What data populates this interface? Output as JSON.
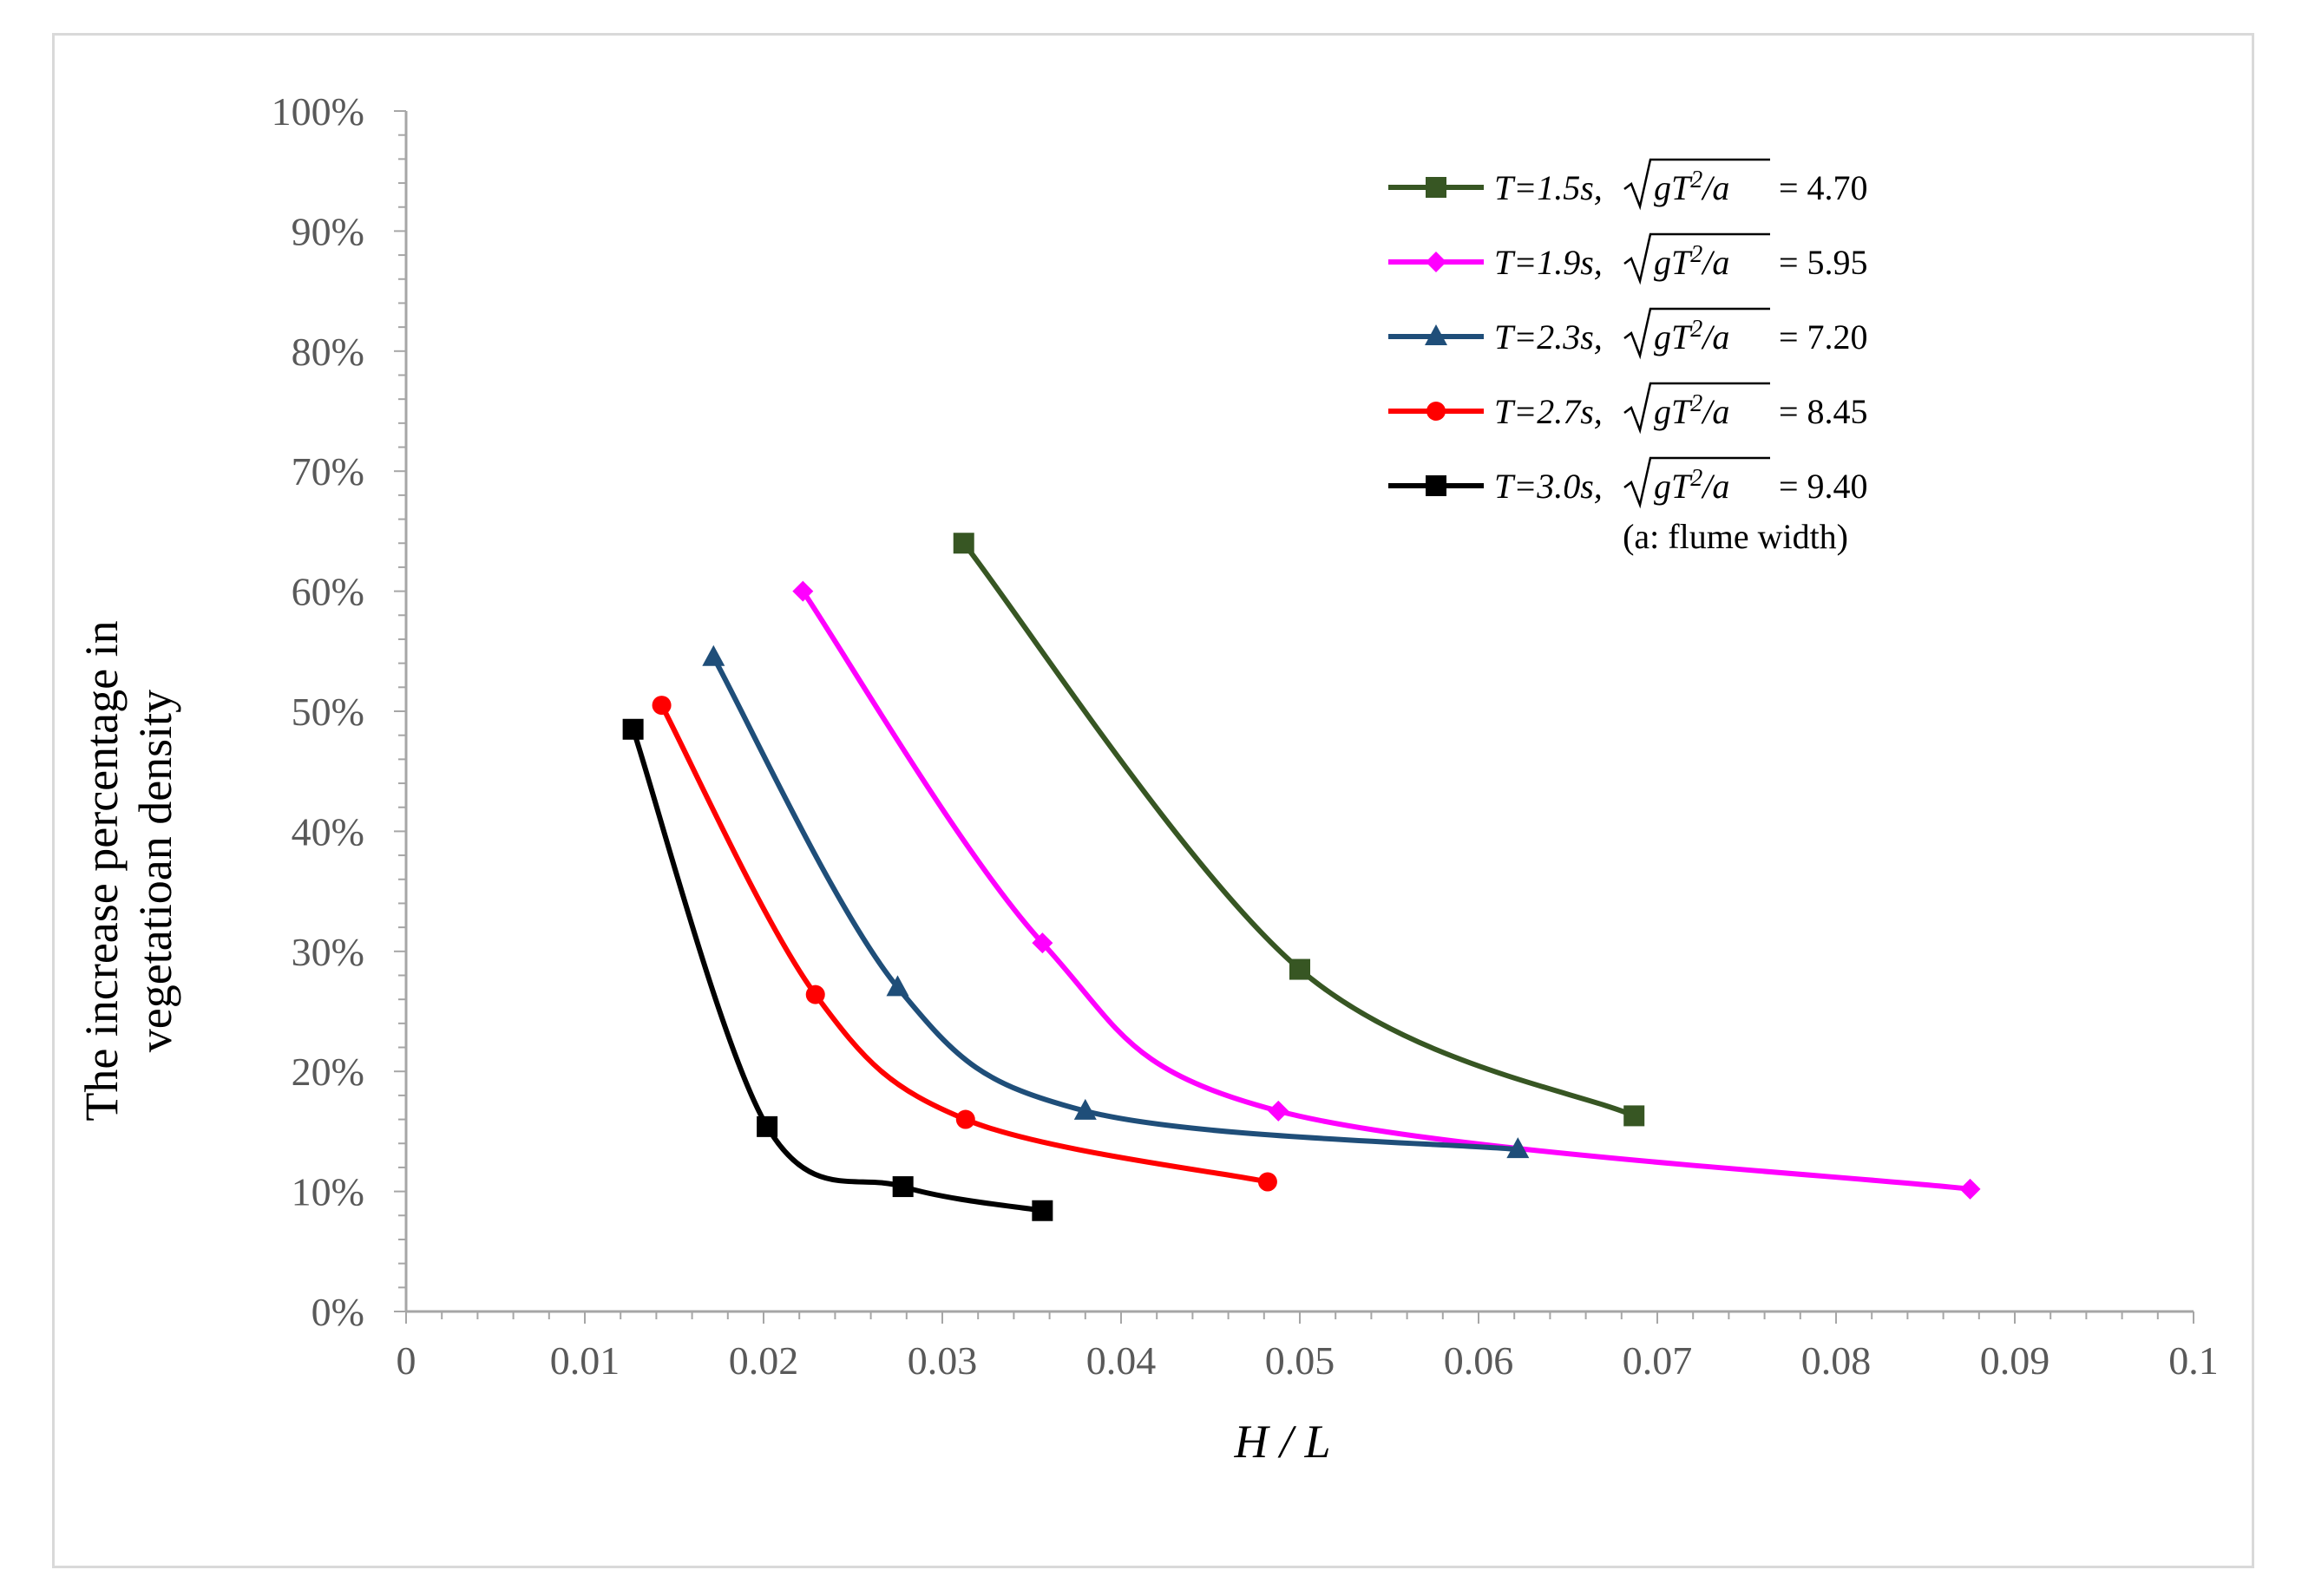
{
  "chart_data": {
    "type": "line",
    "title": "",
    "xlabel": "H / L",
    "ylabel_line1": "The increase percentage in",
    "ylabel_line2": "vegetatioan density",
    "xlim": [
      0,
      0.1
    ],
    "ylim": [
      0,
      1.0
    ],
    "x_ticks": [
      0,
      0.01,
      0.02,
      0.03,
      0.04,
      0.05,
      0.06,
      0.07,
      0.08,
      0.09,
      0.1
    ],
    "x_tick_labels": [
      "0",
      "0.01",
      "0.02",
      "0.03",
      "0.04",
      "0.05",
      "0.06",
      "0.07",
      "0.08",
      "0.09",
      "0.1"
    ],
    "y_ticks": [
      0,
      0.1,
      0.2,
      0.3,
      0.4,
      0.5,
      0.6,
      0.7,
      0.8,
      0.9,
      1.0
    ],
    "y_tick_labels": [
      "0%",
      "10%",
      "20%",
      "30%",
      "40%",
      "50%",
      "60%",
      "70%",
      "80%",
      "90%",
      "100%"
    ],
    "grid": false,
    "legend_position": "top-right",
    "legend_note": "(a:  flume width)",
    "series": [
      {
        "name": "T=1.5s, √(gT²/a) = 4.70",
        "period": "T=1.5s,",
        "value": "= 4.70",
        "color": "#375623",
        "marker": "square",
        "x": [
          0.0312,
          0.05,
          0.0687
        ],
        "y": [
          0.64,
          0.285,
          0.163
        ]
      },
      {
        "name": "T=1.9s, √(gT²/a) = 5.95",
        "period": "T=1.9s,",
        "value": "= 5.95",
        "color": "#ff00ff",
        "marker": "diamond",
        "x": [
          0.0222,
          0.0356,
          0.0488,
          0.0875
        ],
        "y": [
          0.6,
          0.307,
          0.167,
          0.102
        ]
      },
      {
        "name": "T=2.3s, √(gT²/a) = 7.20",
        "period": "T=2.3s,",
        "value": "= 7.20",
        "color": "#1f4e79",
        "marker": "triangle",
        "x": [
          0.0172,
          0.0275,
          0.038,
          0.0622
        ],
        "y": [
          0.545,
          0.27,
          0.167,
          0.135
        ]
      },
      {
        "name": "T=2.7s, √(gT²/a) = 8.45",
        "period": "T=2.7s,",
        "value": "= 8.45",
        "color": "#ff0000",
        "marker": "circle",
        "x": [
          0.0143,
          0.0229,
          0.0313,
          0.0482
        ],
        "y": [
          0.505,
          0.264,
          0.16,
          0.108
        ]
      },
      {
        "name": "T=3.0s, √(gT²/a) = 9.40",
        "period": "T=3.0s,",
        "value": "= 9.40",
        "color": "#000000",
        "marker": "square",
        "x": [
          0.0127,
          0.0202,
          0.0278,
          0.0356
        ],
        "y": [
          0.485,
          0.154,
          0.104,
          0.084
        ]
      }
    ]
  }
}
